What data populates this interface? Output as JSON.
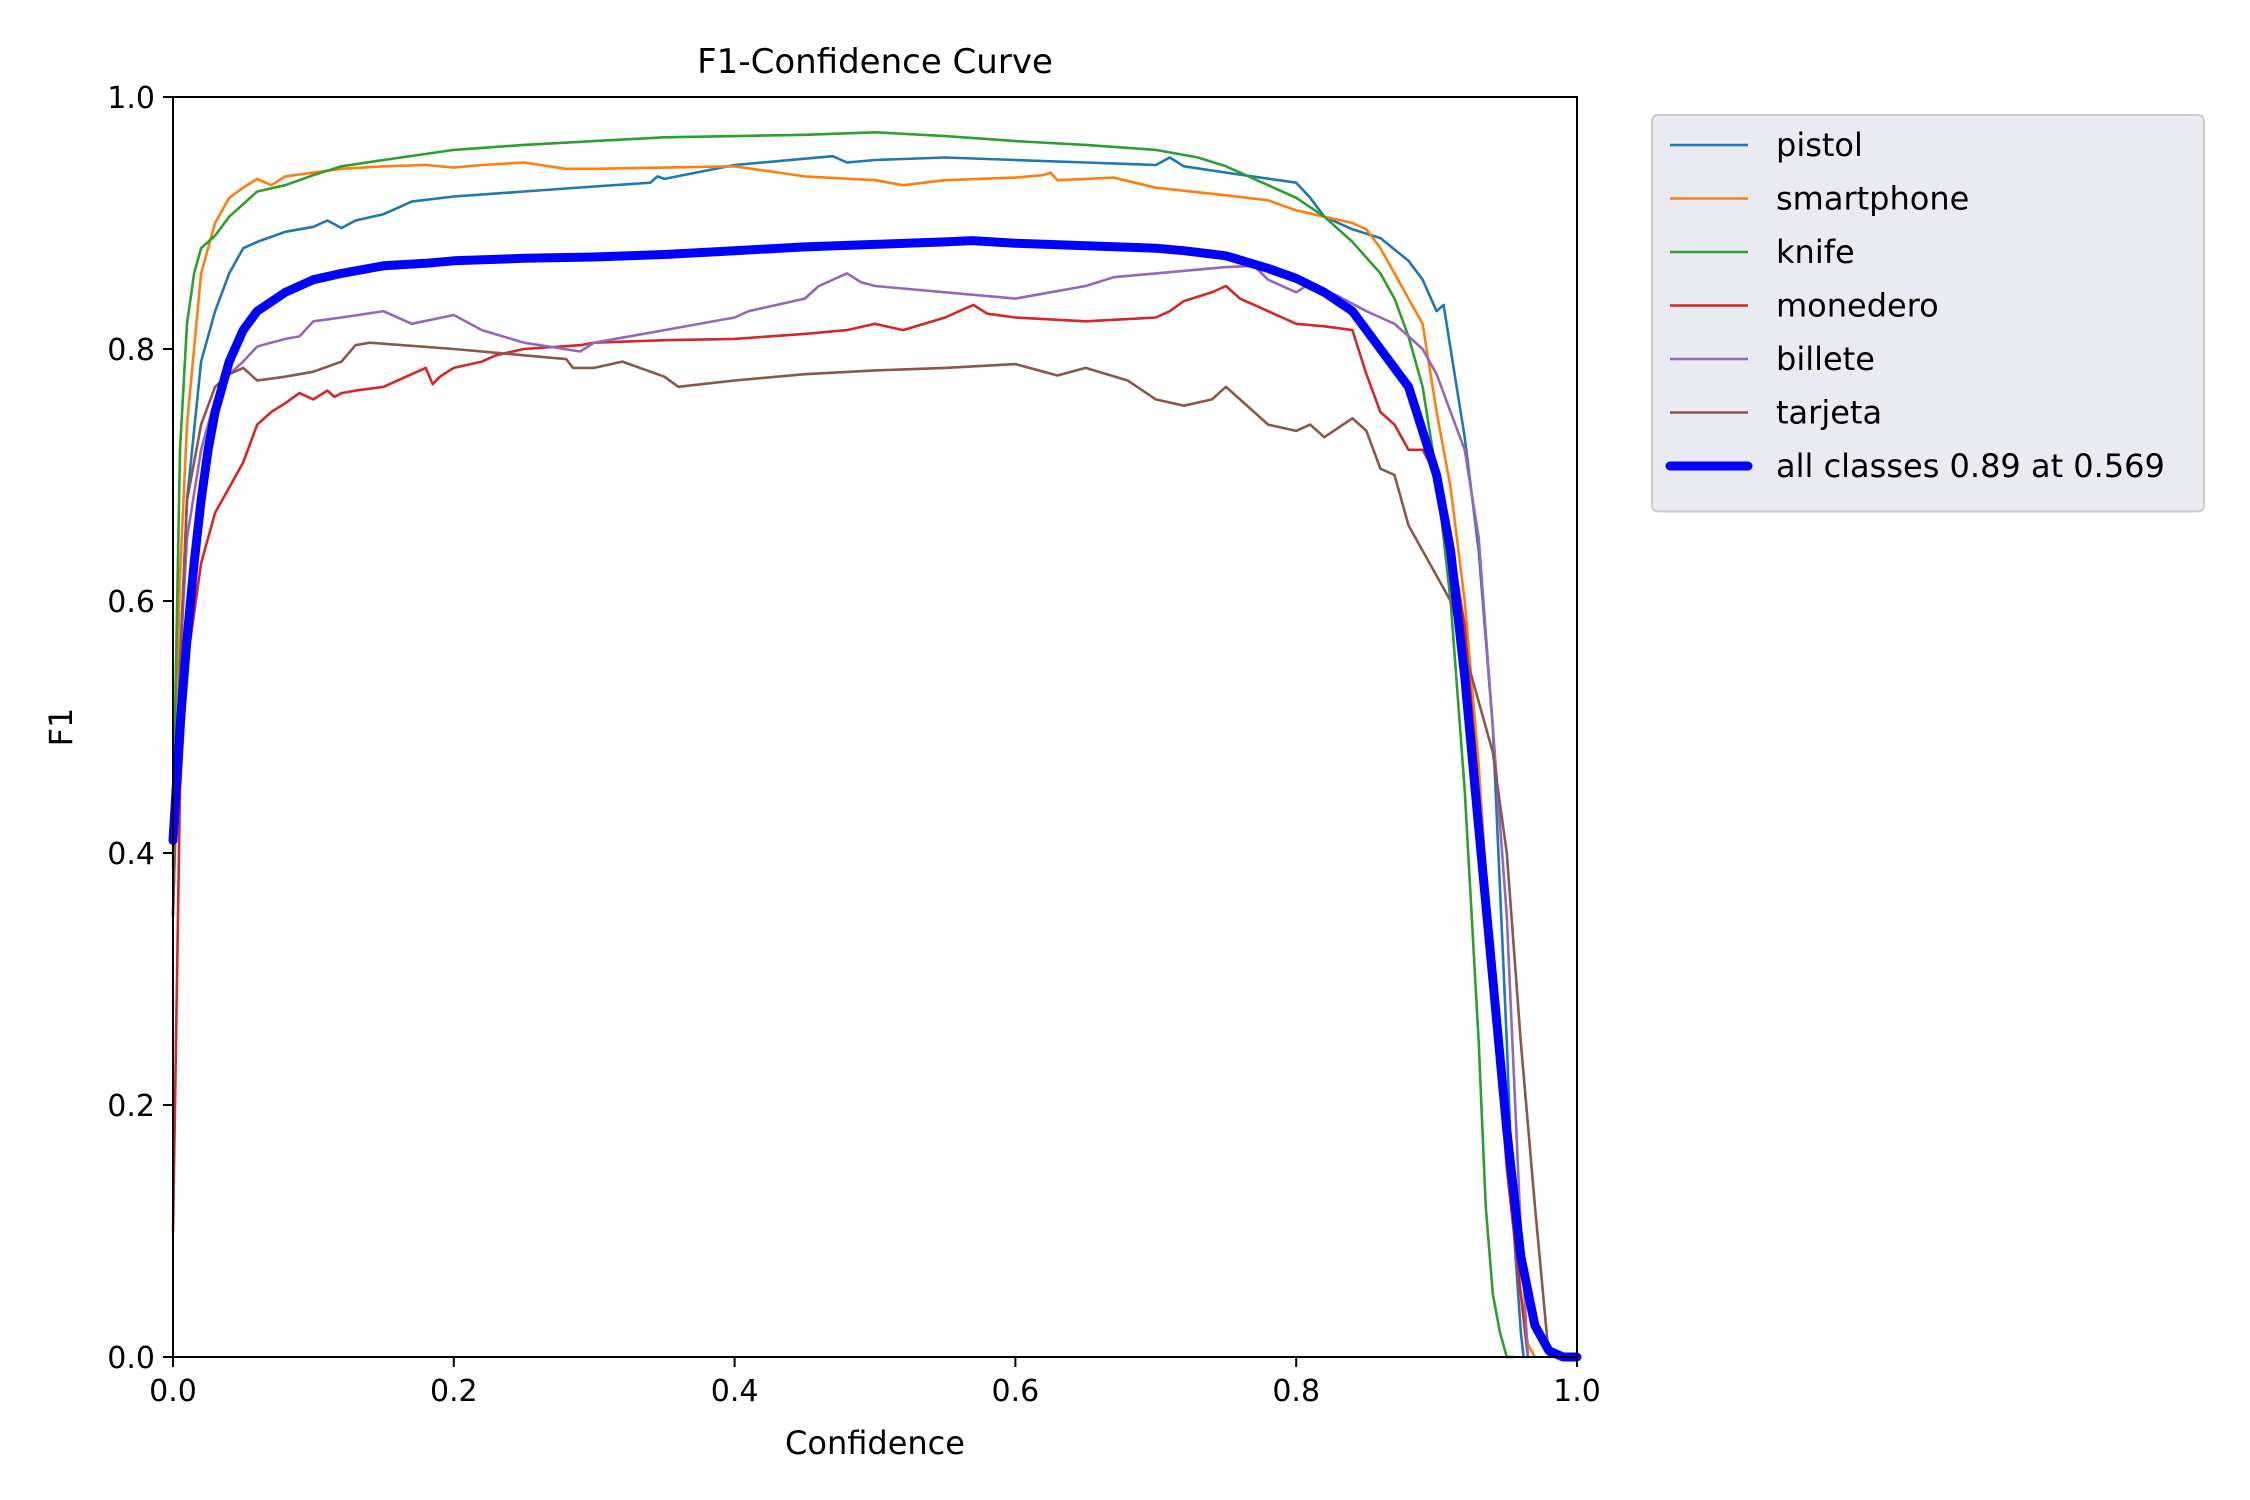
{
  "chart_data": {
    "type": "line",
    "title": "F1-Confidence Curve",
    "xlabel": "Confidence",
    "ylabel": "F1",
    "xlim": [
      0.0,
      1.0
    ],
    "ylim": [
      0.0,
      1.0
    ],
    "xticks": [
      "0.0",
      "0.2",
      "0.4",
      "0.6",
      "0.8",
      "1.0"
    ],
    "yticks": [
      "0.0",
      "0.2",
      "0.4",
      "0.6",
      "0.8",
      "1.0"
    ],
    "grid": false,
    "legend_position": "outside-top-right",
    "series": [
      {
        "name": "pistol",
        "color": "#1f77b4",
        "x": [
          0,
          0.005,
          0.01,
          0.02,
          0.03,
          0.04,
          0.05,
          0.06,
          0.08,
          0.1,
          0.11,
          0.12,
          0.13,
          0.15,
          0.17,
          0.2,
          0.25,
          0.3,
          0.34,
          0.345,
          0.35,
          0.4,
          0.45,
          0.47,
          0.48,
          0.5,
          0.55,
          0.6,
          0.65,
          0.7,
          0.71,
          0.72,
          0.75,
          0.8,
          0.81,
          0.82,
          0.84,
          0.86,
          0.88,
          0.89,
          0.9,
          0.905,
          0.91,
          0.92,
          0.93,
          0.94,
          0.95,
          0.955,
          0.96,
          0.962
        ],
        "y": [
          0.39,
          0.55,
          0.68,
          0.79,
          0.83,
          0.86,
          0.88,
          0.885,
          0.893,
          0.897,
          0.902,
          0.896,
          0.902,
          0.907,
          0.917,
          0.921,
          0.925,
          0.929,
          0.932,
          0.937,
          0.935,
          0.946,
          0.951,
          0.953,
          0.948,
          0.95,
          0.952,
          0.95,
          0.948,
          0.946,
          0.952,
          0.945,
          0.94,
          0.932,
          0.92,
          0.905,
          0.895,
          0.888,
          0.87,
          0.855,
          0.83,
          0.835,
          0.8,
          0.73,
          0.64,
          0.5,
          0.25,
          0.1,
          0.02,
          0.0
        ]
      },
      {
        "name": "smartphone",
        "color": "#ff7f0e",
        "x": [
          0,
          0.005,
          0.01,
          0.02,
          0.03,
          0.04,
          0.05,
          0.06,
          0.07,
          0.08,
          0.1,
          0.12,
          0.15,
          0.18,
          0.2,
          0.22,
          0.25,
          0.28,
          0.3,
          0.35,
          0.4,
          0.45,
          0.5,
          0.52,
          0.55,
          0.6,
          0.62,
          0.625,
          0.63,
          0.65,
          0.67,
          0.7,
          0.75,
          0.78,
          0.8,
          0.82,
          0.84,
          0.85,
          0.86,
          0.87,
          0.88,
          0.89,
          0.9,
          0.91,
          0.92,
          0.93,
          0.94,
          0.95,
          0.96,
          0.965,
          0.97
        ],
        "y": [
          0.4,
          0.62,
          0.74,
          0.86,
          0.9,
          0.92,
          0.928,
          0.935,
          0.93,
          0.937,
          0.94,
          0.943,
          0.945,
          0.946,
          0.944,
          0.946,
          0.948,
          0.943,
          0.943,
          0.944,
          0.945,
          0.937,
          0.934,
          0.93,
          0.934,
          0.936,
          0.938,
          0.94,
          0.934,
          0.935,
          0.936,
          0.928,
          0.922,
          0.918,
          0.91,
          0.905,
          0.9,
          0.895,
          0.88,
          0.86,
          0.84,
          0.82,
          0.75,
          0.69,
          0.6,
          0.47,
          0.3,
          0.15,
          0.05,
          0.01,
          0.0
        ]
      },
      {
        "name": "knife",
        "color": "#2ca02c",
        "x": [
          0,
          0.005,
          0.01,
          0.015,
          0.02,
          0.03,
          0.04,
          0.05,
          0.06,
          0.08,
          0.1,
          0.12,
          0.15,
          0.2,
          0.25,
          0.3,
          0.35,
          0.4,
          0.45,
          0.5,
          0.55,
          0.6,
          0.65,
          0.7,
          0.73,
          0.75,
          0.77,
          0.8,
          0.82,
          0.84,
          0.86,
          0.87,
          0.88,
          0.89,
          0.9,
          0.91,
          0.92,
          0.93,
          0.935,
          0.94,
          0.945,
          0.95,
          0.955
        ],
        "y": [
          0.42,
          0.72,
          0.82,
          0.86,
          0.88,
          0.89,
          0.905,
          0.915,
          0.925,
          0.93,
          0.938,
          0.945,
          0.95,
          0.958,
          0.962,
          0.965,
          0.968,
          0.969,
          0.97,
          0.972,
          0.969,
          0.965,
          0.962,
          0.958,
          0.952,
          0.945,
          0.935,
          0.92,
          0.905,
          0.885,
          0.86,
          0.84,
          0.81,
          0.77,
          0.7,
          0.6,
          0.45,
          0.25,
          0.12,
          0.05,
          0.02,
          0.0,
          0.0
        ]
      },
      {
        "name": "monedero",
        "color": "#d62728",
        "x": [
          0,
          0.005,
          0.01,
          0.02,
          0.03,
          0.04,
          0.05,
          0.06,
          0.07,
          0.08,
          0.09,
          0.1,
          0.11,
          0.115,
          0.12,
          0.13,
          0.15,
          0.18,
          0.185,
          0.19,
          0.2,
          0.22,
          0.23,
          0.25,
          0.29,
          0.3,
          0.35,
          0.4,
          0.45,
          0.48,
          0.5,
          0.52,
          0.55,
          0.56,
          0.57,
          0.58,
          0.6,
          0.65,
          0.7,
          0.71,
          0.72,
          0.74,
          0.75,
          0.76,
          0.78,
          0.79,
          0.8,
          0.82,
          0.84,
          0.85,
          0.86,
          0.87,
          0.88,
          0.89,
          0.9,
          0.91,
          0.92,
          0.93,
          0.94,
          0.95,
          0.96,
          0.965
        ],
        "y": [
          0.1,
          0.45,
          0.55,
          0.63,
          0.67,
          0.69,
          0.71,
          0.74,
          0.75,
          0.757,
          0.765,
          0.76,
          0.767,
          0.762,
          0.765,
          0.767,
          0.77,
          0.785,
          0.772,
          0.778,
          0.785,
          0.79,
          0.795,
          0.8,
          0.803,
          0.805,
          0.807,
          0.808,
          0.812,
          0.815,
          0.82,
          0.815,
          0.825,
          0.83,
          0.835,
          0.828,
          0.825,
          0.822,
          0.825,
          0.83,
          0.838,
          0.845,
          0.85,
          0.84,
          0.83,
          0.825,
          0.82,
          0.818,
          0.815,
          0.78,
          0.75,
          0.74,
          0.72,
          0.72,
          0.7,
          0.65,
          0.58,
          0.45,
          0.3,
          0.15,
          0.05,
          0.0
        ]
      },
      {
        "name": "billete",
        "color": "#9467bd",
        "x": [
          0,
          0.005,
          0.01,
          0.02,
          0.03,
          0.04,
          0.05,
          0.06,
          0.08,
          0.09,
          0.1,
          0.12,
          0.15,
          0.17,
          0.2,
          0.22,
          0.25,
          0.29,
          0.3,
          0.35,
          0.4,
          0.41,
          0.45,
          0.46,
          0.48,
          0.49,
          0.5,
          0.55,
          0.6,
          0.65,
          0.67,
          0.7,
          0.75,
          0.77,
          0.78,
          0.8,
          0.81,
          0.83,
          0.85,
          0.86,
          0.87,
          0.88,
          0.89,
          0.9,
          0.91,
          0.92,
          0.93,
          0.94,
          0.95,
          0.96,
          0.965
        ],
        "y": [
          0.35,
          0.55,
          0.65,
          0.72,
          0.76,
          0.78,
          0.79,
          0.802,
          0.808,
          0.81,
          0.822,
          0.825,
          0.83,
          0.82,
          0.827,
          0.815,
          0.805,
          0.798,
          0.805,
          0.815,
          0.825,
          0.83,
          0.84,
          0.85,
          0.86,
          0.853,
          0.85,
          0.845,
          0.84,
          0.85,
          0.857,
          0.86,
          0.865,
          0.866,
          0.855,
          0.845,
          0.852,
          0.842,
          0.83,
          0.825,
          0.82,
          0.81,
          0.8,
          0.78,
          0.75,
          0.72,
          0.65,
          0.5,
          0.35,
          0.1,
          0.0
        ]
      },
      {
        "name": "tarjeta",
        "color": "#8c564b",
        "x": [
          0,
          0.005,
          0.01,
          0.02,
          0.03,
          0.04,
          0.05,
          0.055,
          0.06,
          0.08,
          0.1,
          0.12,
          0.13,
          0.14,
          0.2,
          0.25,
          0.28,
          0.285,
          0.3,
          0.32,
          0.35,
          0.36,
          0.4,
          0.45,
          0.5,
          0.55,
          0.6,
          0.63,
          0.65,
          0.68,
          0.7,
          0.72,
          0.74,
          0.75,
          0.76,
          0.78,
          0.8,
          0.81,
          0.82,
          0.84,
          0.85,
          0.86,
          0.87,
          0.88,
          0.9,
          0.91,
          0.92,
          0.93,
          0.94,
          0.95,
          0.96,
          0.97,
          0.98
        ],
        "y": [
          0.35,
          0.55,
          0.68,
          0.74,
          0.77,
          0.78,
          0.785,
          0.78,
          0.775,
          0.778,
          0.782,
          0.79,
          0.803,
          0.805,
          0.8,
          0.795,
          0.792,
          0.785,
          0.785,
          0.79,
          0.778,
          0.77,
          0.775,
          0.78,
          0.783,
          0.785,
          0.788,
          0.779,
          0.785,
          0.775,
          0.76,
          0.755,
          0.76,
          0.77,
          0.76,
          0.74,
          0.735,
          0.74,
          0.73,
          0.745,
          0.735,
          0.705,
          0.7,
          0.66,
          0.62,
          0.6,
          0.56,
          0.52,
          0.48,
          0.4,
          0.25,
          0.12,
          0.0
        ]
      },
      {
        "name": "all classes 0.89 at 0.569",
        "color": "#0000ff",
        "thick": true,
        "x": [
          0,
          0.005,
          0.01,
          0.015,
          0.02,
          0.025,
          0.03,
          0.04,
          0.05,
          0.06,
          0.08,
          0.1,
          0.12,
          0.15,
          0.18,
          0.2,
          0.25,
          0.3,
          0.35,
          0.4,
          0.45,
          0.5,
          0.55,
          0.569,
          0.6,
          0.65,
          0.7,
          0.72,
          0.75,
          0.78,
          0.8,
          0.82,
          0.84,
          0.86,
          0.88,
          0.9,
          0.91,
          0.92,
          0.93,
          0.94,
          0.95,
          0.96,
          0.97,
          0.98,
          0.99,
          1.0
        ],
        "y": [
          0.41,
          0.5,
          0.57,
          0.63,
          0.68,
          0.72,
          0.75,
          0.79,
          0.815,
          0.83,
          0.845,
          0.855,
          0.86,
          0.866,
          0.868,
          0.87,
          0.872,
          0.873,
          0.875,
          0.878,
          0.881,
          0.883,
          0.885,
          0.886,
          0.884,
          0.882,
          0.88,
          0.878,
          0.874,
          0.864,
          0.856,
          0.845,
          0.83,
          0.8,
          0.77,
          0.7,
          0.64,
          0.54,
          0.42,
          0.3,
          0.18,
          0.08,
          0.025,
          0.005,
          0.0,
          0.0
        ]
      }
    ]
  }
}
